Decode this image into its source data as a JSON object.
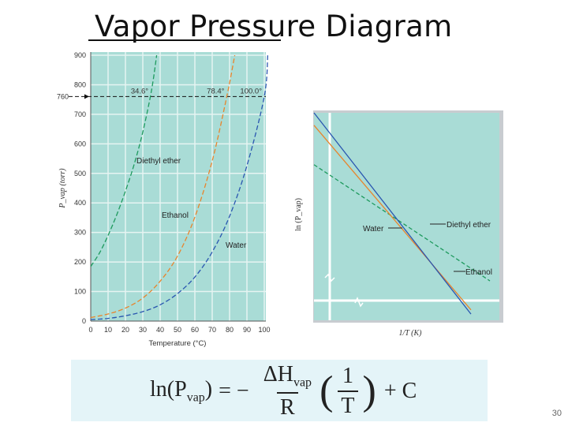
{
  "slide": {
    "title": "Vapor Pressure Diagram",
    "page_number": "30"
  },
  "colors": {
    "panel": "#a9dcd6",
    "grid": "#e6f4f2",
    "ether": "#1e9a5e",
    "ethanol": "#e8842c",
    "water": "#2a56b0"
  },
  "chart_data": [
    {
      "type": "line",
      "xlabel": "Temperature (°C)",
      "ylabel": "P_vap (torr)",
      "xlim": [
        0,
        100
      ],
      "ylim": [
        0,
        900
      ],
      "xticks": [
        0,
        10,
        20,
        30,
        40,
        50,
        60,
        70,
        80,
        90,
        100
      ],
      "yticks": [
        0,
        100,
        200,
        300,
        400,
        500,
        600,
        700,
        800,
        900
      ],
      "grid": true,
      "reference_line": {
        "y": 760,
        "label": "760"
      },
      "annotations": [
        {
          "text": "34.6°",
          "x": 34.6,
          "y": 760
        },
        {
          "text": "78.4°",
          "x": 78.4,
          "y": 760
        },
        {
          "text": "100.0°",
          "x": 100.0,
          "y": 760
        }
      ],
      "series": [
        {
          "name": "Diethyl ether",
          "color": "#1e9a5e",
          "x": [
            0,
            5,
            10,
            15,
            20,
            25,
            30,
            35,
            38
          ],
          "y": [
            185,
            230,
            290,
            360,
            440,
            530,
            640,
            780,
            900
          ]
        },
        {
          "name": "Ethanol",
          "color": "#e8842c",
          "x": [
            0,
            10,
            20,
            30,
            40,
            50,
            60,
            70,
            78.4,
            83
          ],
          "y": [
            12,
            24,
            44,
            78,
            135,
            220,
            352,
            542,
            760,
            900
          ]
        },
        {
          "name": "Water",
          "color": "#2a56b0",
          "x": [
            0,
            10,
            20,
            30,
            40,
            50,
            60,
            70,
            80,
            90,
            100,
            102
          ],
          "y": [
            5,
            9,
            18,
            32,
            55,
            93,
            149,
            234,
            355,
            526,
            760,
            900
          ]
        }
      ]
    },
    {
      "type": "line",
      "xlabel": "1/T (K)",
      "ylabel": "ln (P_vap)",
      "grid": false,
      "series": [
        {
          "name": "Diethyl ether",
          "color": "#1e9a5e",
          "x": [
            0.0,
            1.0
          ],
          "y": [
            0.75,
            0.19
          ]
        },
        {
          "name": "Ethanol",
          "color": "#e8842c",
          "x": [
            0.0,
            1.0
          ],
          "y": [
            0.94,
            0.05
          ]
        },
        {
          "name": "Water",
          "color": "#2a56b0",
          "x": [
            0.0,
            1.0
          ],
          "y": [
            1.0,
            0.03
          ]
        }
      ]
    }
  ],
  "equation": {
    "lhs": "ln(P",
    "lhs_sub": "vap",
    "lhs_close": ")",
    "equals": "= −",
    "num": "ΔH",
    "num_sub": "vap",
    "den": "R",
    "paren_open": "(",
    "paren_close": ")",
    "inner_num": "1",
    "inner_den": "T",
    "plus": "+ C"
  }
}
